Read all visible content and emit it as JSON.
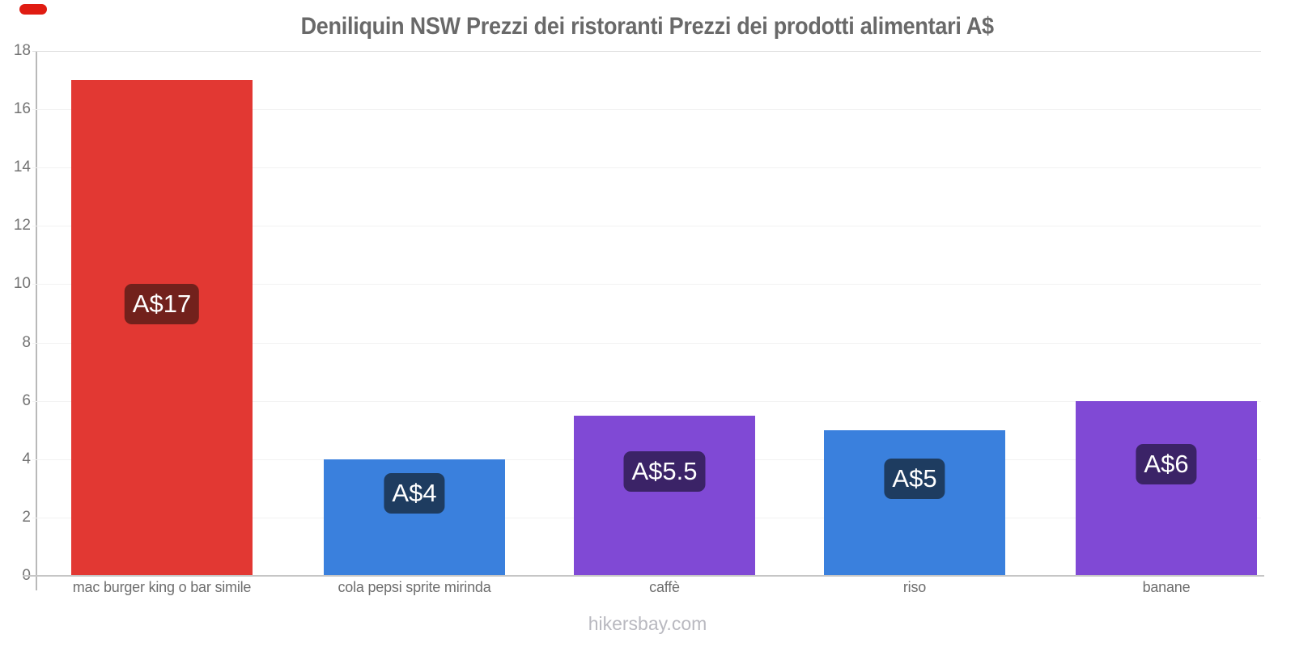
{
  "chart_data": {
    "type": "bar",
    "title": "Deniliquin NSW Prezzi dei ristoranti Prezzi dei prodotti alimentari A$",
    "categories": [
      "mac burger king o bar simile",
      "cola pepsi sprite mirinda",
      "caffè",
      "riso",
      "banane"
    ],
    "values": [
      17,
      4,
      5.5,
      5,
      6
    ],
    "value_labels": [
      "A$17",
      "A$4",
      "A$5.5",
      "A$5",
      "A$6"
    ],
    "bar_colors": [
      "#e23833",
      "#3a80dd",
      "#8049d5",
      "#3a80dd",
      "#8049d5"
    ],
    "label_bg_colors": [
      "#72211c",
      "#1e3c60",
      "#3b2367",
      "#1e3c60",
      "#3b2367"
    ],
    "currency": "A$",
    "xlabel": "",
    "ylabel": "",
    "ylim": [
      0,
      18
    ],
    "yticks": [
      0,
      2,
      4,
      6,
      8,
      10,
      12,
      14,
      16,
      18
    ],
    "grid": "faint horizontal gridlines, light gray axes",
    "legend": "none",
    "watermark": "hikersbay.com"
  },
  "ui": {
    "corner_mark_color": "#e01c12",
    "title_color": "#696969",
    "tick_label_color": "#737373",
    "category_label_color": "#6e6e6e",
    "watermark_color": "#b9b9c0"
  }
}
